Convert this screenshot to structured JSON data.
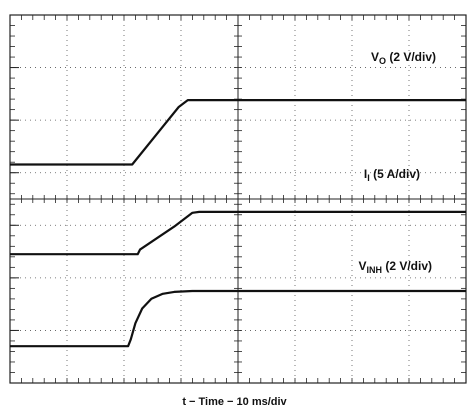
{
  "chart_data": {
    "type": "line",
    "title": "",
    "xlabel": "t − Time − 10 ms/div",
    "ylabel": "",
    "xlim": [
      0,
      100
    ],
    "ylim": [
      0,
      8
    ],
    "grid": true,
    "grid_divisions": {
      "x": 8,
      "y": 7
    },
    "grid_style": "dotted with minor ticks on center axes",
    "series": [
      {
        "name": "V_O (2 V/div)",
        "label_main": "V",
        "label_sub": "O",
        "label_unit": " (2 V/div)",
        "points": [
          [
            0,
            4.75
          ],
          [
            26.8,
            4.75
          ],
          [
            37.0,
            6.0
          ],
          [
            39.0,
            6.15
          ],
          [
            100,
            6.15
          ]
        ]
      },
      {
        "name": "I_I (5 A/div)",
        "label_main": "I",
        "label_sub": "I",
        "label_unit": " (5 A/div)",
        "points": [
          [
            0,
            2.8
          ],
          [
            28.0,
            2.8
          ],
          [
            28.5,
            2.9
          ],
          [
            36.0,
            3.4
          ],
          [
            40.0,
            3.7
          ],
          [
            41.5,
            3.72
          ],
          [
            100,
            3.72
          ]
        ]
      },
      {
        "name": "V_INH (2 V/div)",
        "label_main": "V",
        "label_sub": "INH",
        "label_unit": " (2 V/div)",
        "points": [
          [
            0,
            0.8
          ],
          [
            25.9,
            0.8
          ],
          [
            26.5,
            0.95
          ],
          [
            27.5,
            1.3
          ],
          [
            29.0,
            1.62
          ],
          [
            31.0,
            1.83
          ],
          [
            33.5,
            1.94
          ],
          [
            36.0,
            1.98
          ],
          [
            40.0,
            2.0
          ],
          [
            100,
            2.0
          ]
        ]
      }
    ]
  }
}
